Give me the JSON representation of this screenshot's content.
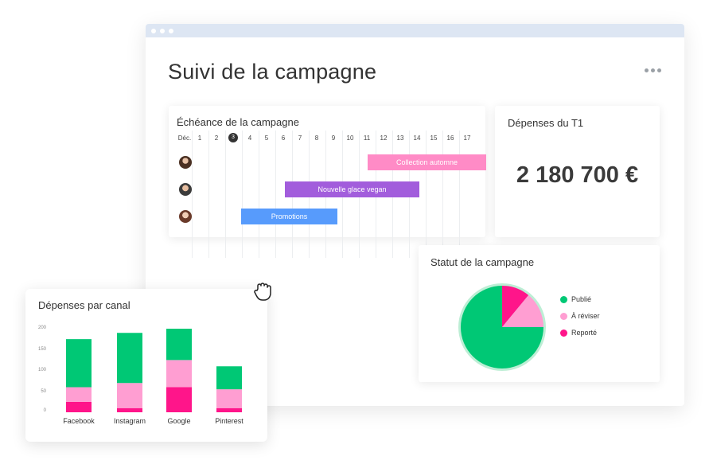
{
  "window": {
    "title": "Suivi de la campagne"
  },
  "timeline": {
    "title": "Échéance de la campagne",
    "month": "Déc.",
    "days": [
      "1",
      "2",
      "3",
      "4",
      "5",
      "6",
      "7",
      "8",
      "9",
      "10",
      "11",
      "12",
      "13",
      "14",
      "15",
      "16",
      "17"
    ],
    "today": "3",
    "tasks": [
      {
        "label": "Collection automne",
        "color": "#ff8bc6",
        "avatar": "avatar-woman-1"
      },
      {
        "label": "Nouvelle glace vegan",
        "color": "#a25ddc",
        "avatar": "avatar-man"
      },
      {
        "label": "Promotions",
        "color": "#579bfc",
        "avatar": "avatar-woman-2"
      }
    ]
  },
  "spend": {
    "title": "Dépenses du T1",
    "amount": "2 180 700 €"
  },
  "status": {
    "title": "Statut de la campagne",
    "legend": [
      {
        "label": "Publié",
        "color": "#00c875"
      },
      {
        "label": "À réviser",
        "color": "#ff9ed2"
      },
      {
        "label": "Reporté",
        "color": "#ff158a"
      }
    ]
  },
  "channel": {
    "title": "Dépenses par canal",
    "yticks": [
      "200",
      "150",
      "100",
      "50",
      "0"
    ]
  },
  "chart_data": [
    {
      "type": "bar",
      "title": "Dépenses par canal",
      "categories": [
        "Facebook",
        "Instagram",
        "Google",
        "Pinterest"
      ],
      "ylim": [
        0,
        200
      ],
      "stacked": true,
      "series": [
        {
          "color": "#ff158a",
          "values": [
            25,
            10,
            60,
            10
          ]
        },
        {
          "color": "#ff9ed2",
          "values": [
            35,
            60,
            65,
            45
          ]
        },
        {
          "color": "#00c875",
          "values": [
            115,
            120,
            75,
            55
          ]
        }
      ]
    },
    {
      "type": "pie",
      "title": "Statut de la campagne",
      "labels": [
        "Publié",
        "À réviser",
        "Reporté"
      ],
      "values": [
        75,
        14,
        11
      ],
      "colors": [
        "#00c875",
        "#ff9ed2",
        "#ff158a"
      ]
    }
  ]
}
